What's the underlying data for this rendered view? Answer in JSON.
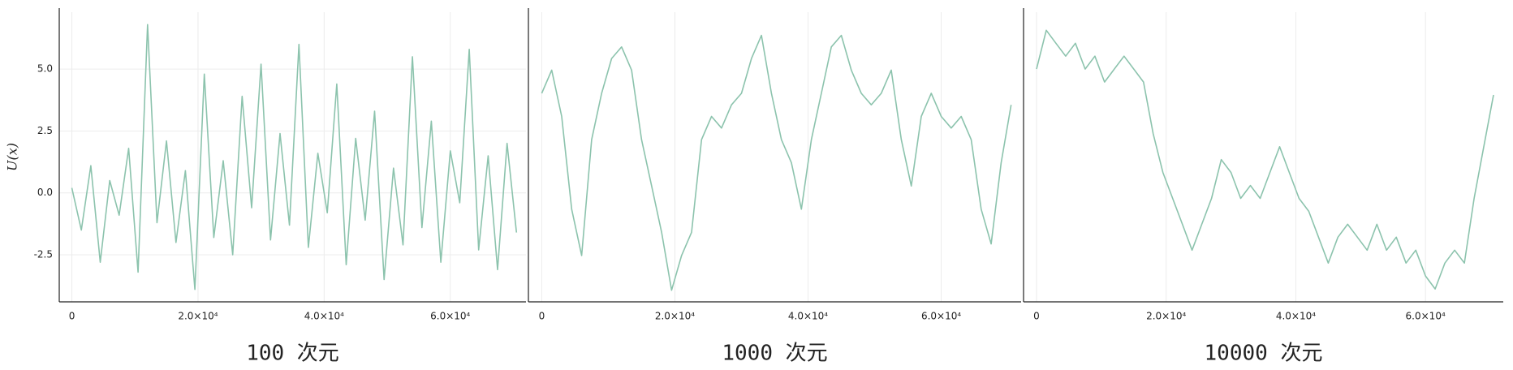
{
  "chart_data": [
    {
      "type": "line",
      "title": "100 次元",
      "ylabel": "U(x)",
      "color": "#8cc3ad",
      "grid": true,
      "xlim": [
        -2000,
        72000
      ],
      "ylim": [
        -4.4,
        7.3
      ],
      "xticks": [
        0,
        {
          "value": 20000,
          "label": "2.0×10⁴"
        },
        {
          "value": 40000,
          "label": "4.0×10⁴"
        },
        {
          "value": 60000,
          "label": "6.0×10⁴"
        }
      ],
      "yticks": [
        -2.5,
        {
          "value": 0,
          "label": "0.0"
        },
        2.5,
        {
          "value": 5,
          "label": "5.0"
        }
      ],
      "x": [
        0,
        1500,
        3000,
        4500,
        6000,
        7500,
        9000,
        10500,
        12000,
        13500,
        15000,
        16500,
        18000,
        19500,
        21000,
        22500,
        24000,
        25500,
        27000,
        28500,
        30000,
        31500,
        33000,
        34500,
        36000,
        37500,
        39000,
        40500,
        42000,
        43500,
        45000,
        46500,
        48000,
        49500,
        51000,
        52500,
        54000,
        55500,
        57000,
        58500,
        60000,
        61500,
        63000,
        64500,
        66000,
        67500,
        69000,
        70500
      ],
      "values": [
        0.2,
        -1.5,
        1.1,
        -2.8,
        0.5,
        -0.9,
        1.8,
        -3.2,
        6.8,
        -1.2,
        2.1,
        -2.0,
        0.9,
        -3.9,
        4.8,
        -1.8,
        1.3,
        -2.5,
        3.9,
        -0.6,
        5.2,
        -1.9,
        2.4,
        -1.3,
        6.0,
        -2.2,
        1.6,
        -0.8,
        4.4,
        -2.9,
        2.2,
        -1.1,
        3.3,
        -3.5,
        1.0,
        -2.1,
        5.5,
        -1.4,
        2.9,
        -2.8,
        1.7,
        -0.4,
        5.8,
        -2.3,
        1.5,
        -3.1,
        2.0,
        -1.6
      ]
    },
    {
      "type": "line",
      "title": "1000 次元",
      "color": "#8cc3ad",
      "grid": true,
      "xlim": [
        -2000,
        72000
      ],
      "ylim": [
        -6,
        6.5
      ],
      "xticks": [
        0,
        {
          "value": 20000,
          "label": "2.0×10⁴"
        },
        {
          "value": 40000,
          "label": "4.0×10⁴"
        },
        {
          "value": 60000,
          "label": "6.0×10⁴"
        }
      ],
      "x": [
        0,
        1500,
        3000,
        4500,
        6000,
        7500,
        9000,
        10500,
        12000,
        13500,
        15000,
        16500,
        18000,
        19500,
        21000,
        22500,
        24000,
        25500,
        27000,
        28500,
        30000,
        31500,
        33000,
        34500,
        36000,
        37500,
        39000,
        40500,
        42000,
        43500,
        45000,
        46500,
        48000,
        49500,
        51000,
        52500,
        54000,
        55500,
        57000,
        58500,
        60000,
        61500,
        63000,
        64500,
        66000,
        67500,
        69000,
        70500
      ],
      "values": [
        3,
        4,
        2,
        -2,
        -4,
        1,
        3,
        4.5,
        5,
        4,
        1,
        -1,
        -3,
        -5.5,
        -4,
        -3,
        1,
        2,
        1.5,
        2.5,
        3,
        4.5,
        5.5,
        3,
        1,
        0,
        -2,
        1,
        3,
        5,
        5.5,
        4,
        3,
        2.5,
        3,
        4,
        1,
        -1,
        2,
        3,
        2,
        1.5,
        2,
        1,
        -2,
        -3.5,
        0,
        2.5
      ]
    },
    {
      "type": "line",
      "title": "10000 次元",
      "color": "#8cc3ad",
      "grid": true,
      "xlim": [
        -2000,
        72000
      ],
      "ylim": [
        -5,
        6.2
      ],
      "xticks": [
        0,
        {
          "value": 20000,
          "label": "2.0×10⁴"
        },
        {
          "value": 40000,
          "label": "4.0×10⁴"
        },
        {
          "value": 60000,
          "label": "6.0×10⁴"
        }
      ],
      "x": [
        0,
        1500,
        3000,
        4500,
        6000,
        7500,
        9000,
        10500,
        12000,
        13500,
        15000,
        16500,
        18000,
        19500,
        21000,
        22500,
        24000,
        25500,
        27000,
        28500,
        30000,
        31500,
        33000,
        34500,
        36000,
        37500,
        39000,
        40500,
        42000,
        43500,
        45000,
        46500,
        48000,
        49500,
        51000,
        52500,
        54000,
        55500,
        57000,
        58500,
        60000,
        61500,
        63000,
        64500,
        66000,
        67500,
        69000,
        70500
      ],
      "values": [
        4,
        5.5,
        5,
        4.5,
        5,
        4,
        4.5,
        3.5,
        4,
        4.5,
        4,
        3.5,
        1.5,
        0,
        -1,
        -2,
        -3,
        -2,
        -1,
        0.5,
        0,
        -1,
        -0.5,
        -1,
        0,
        1,
        0,
        -1,
        -1.5,
        -2.5,
        -3.5,
        -2.5,
        -2,
        -2.5,
        -3,
        -2,
        -3,
        -2.5,
        -3.5,
        -3,
        -4,
        -4.5,
        -3.5,
        -3,
        -3.5,
        -1,
        1,
        3
      ]
    }
  ]
}
